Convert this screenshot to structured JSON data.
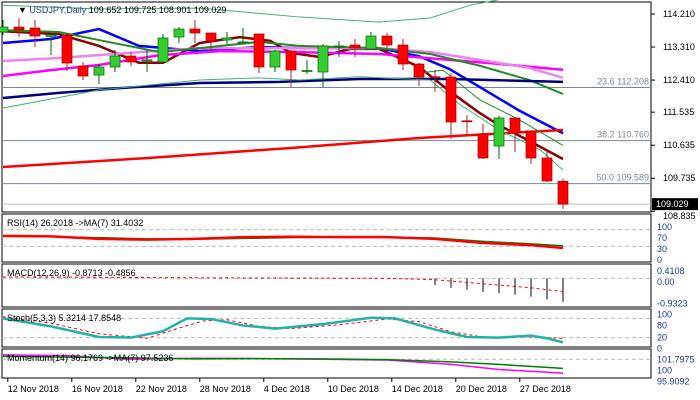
{
  "header": {
    "symbol": "USDJPY,Daily",
    "ohlc": "109.652 109.725 108.901 109.029"
  },
  "colors": {
    "bull": "#33cc33",
    "bear": "#ff0000",
    "rsi": "#ff0000",
    "rsi_ma": "#008000",
    "stoch": "#20b2aa",
    "momentum": "#ff00ff"
  },
  "price_axis": {
    "ticks": [
      "114.210",
      "113.310",
      "112.410",
      "111.535",
      "110.635",
      "109.735",
      "108.835"
    ],
    "current": "109.029"
  },
  "fib_levels": [
    {
      "label": "23.6 112.208",
      "price": 112.208
    },
    {
      "label": "38.2 110.760",
      "price": 110.76
    },
    {
      "label": "50.0 109.589",
      "price": 109.589
    }
  ],
  "candles": [
    [
      113.719,
      114.046,
      113.637,
      113.855
    ],
    [
      113.855,
      114.1,
      113.583,
      113.774
    ],
    [
      113.828,
      114.046,
      113.31,
      113.61
    ],
    [
      113.6,
      113.665,
      113.092,
      113.637
    ],
    [
      113.637,
      113.665,
      112.656,
      112.874
    ],
    [
      112.793,
      112.902,
      112.411,
      112.52
    ],
    [
      112.547,
      112.847,
      112.302,
      112.766
    ],
    [
      112.766,
      113.229,
      112.629,
      113.065
    ],
    [
      113.065,
      113.174,
      112.793,
      112.902
    ],
    [
      112.95,
      113.229,
      112.629,
      112.96
    ],
    [
      112.902,
      113.665,
      112.88,
      113.556
    ],
    [
      113.583,
      113.855,
      113.419,
      113.801
    ],
    [
      113.801,
      114.046,
      113.419,
      113.692
    ],
    [
      113.692,
      113.7,
      113.229,
      113.474
    ],
    [
      113.501,
      113.719,
      113.392,
      113.556
    ],
    [
      113.44,
      113.828,
      113.392,
      113.45
    ],
    [
      113.665,
      113.68,
      112.602,
      112.766
    ],
    [
      112.766,
      113.229,
      112.629,
      113.201
    ],
    [
      113.201,
      113.229,
      112.22,
      112.684
    ],
    [
      112.66,
      112.956,
      112.575,
      112.67
    ],
    [
      112.629,
      113.392,
      112.22,
      113.338
    ],
    [
      113.33,
      113.474,
      113.038,
      113.34
    ],
    [
      113.365,
      113.528,
      113.038,
      113.283
    ],
    [
      113.256,
      113.719,
      113.229,
      113.61
    ],
    [
      113.61,
      113.692,
      113.283,
      113.365
    ],
    [
      113.365,
      113.528,
      112.684,
      112.847
    ],
    [
      112.847,
      112.874,
      112.248,
      112.493
    ],
    [
      112.5,
      112.684,
      112.084,
      112.48
    ],
    [
      112.493,
      112.602,
      110.804,
      111.266
    ],
    [
      111.3,
      111.457,
      110.912,
      111.28
    ],
    [
      110.94,
      111.212,
      110.258,
      110.286
    ],
    [
      110.613,
      111.43,
      110.258,
      111.376
    ],
    [
      111.376,
      111.4,
      110.449,
      110.967
    ],
    [
      111.021,
      111.03,
      110.122,
      110.286
    ],
    [
      110.286,
      110.504,
      109.632,
      109.659
    ],
    [
      109.652,
      109.725,
      108.901,
      109.029
    ]
  ],
  "overlays": [
    {
      "name": "ema-short",
      "color": "#8b0000",
      "width": 2.5,
      "pts": [
        [
          0,
          113.74
        ],
        [
          3.5,
          113.66
        ],
        [
          6,
          113.34
        ],
        [
          8.5,
          112.88
        ],
        [
          10,
          112.88
        ],
        [
          12.3,
          113.42
        ],
        [
          14.8,
          113.58
        ],
        [
          16.7,
          113.48
        ],
        [
          18,
          113.15
        ],
        [
          19.8,
          113.04
        ],
        [
          21.7,
          113.26
        ],
        [
          23.5,
          113.26
        ],
        [
          26,
          112.77
        ],
        [
          27.9,
          112.11
        ],
        [
          29.8,
          111.51
        ],
        [
          31,
          111.18
        ],
        [
          32.9,
          110.75
        ],
        [
          35,
          110.26
        ]
      ]
    },
    {
      "name": "blue-ma",
      "color": "#0000ff",
      "width": 2.5,
      "pts": [
        [
          0,
          113.42
        ],
        [
          3,
          113.53
        ],
        [
          6,
          113.8
        ],
        [
          8.5,
          113.34
        ],
        [
          12.3,
          113.2
        ],
        [
          16,
          113.31
        ],
        [
          18.5,
          113.28
        ],
        [
          23.5,
          113.28
        ],
        [
          26,
          113.06
        ],
        [
          27.9,
          112.71
        ],
        [
          29.8,
          112.22
        ],
        [
          32.3,
          111.57
        ],
        [
          35,
          110.96
        ]
      ]
    },
    {
      "name": "magenta-ma",
      "color": "#ff00ff",
      "width": 2.5,
      "pts": [
        [
          0,
          112.52
        ],
        [
          3,
          112.68
        ],
        [
          6,
          112.82
        ],
        [
          9.8,
          113.09
        ],
        [
          13.6,
          113.2
        ],
        [
          18.5,
          113.17
        ],
        [
          23.5,
          113.12
        ],
        [
          27.9,
          112.96
        ],
        [
          31,
          112.85
        ],
        [
          35,
          112.69
        ]
      ]
    },
    {
      "name": "violet-ma",
      "color": "#ee82ee",
      "width": 2.5,
      "pts": [
        [
          0,
          112.93
        ],
        [
          3.5,
          113.01
        ],
        [
          8.5,
          113.17
        ],
        [
          12.3,
          113.28
        ],
        [
          17.3,
          113.28
        ],
        [
          23.5,
          113.28
        ],
        [
          26.7,
          113.17
        ],
        [
          29.8,
          112.96
        ],
        [
          32.9,
          112.74
        ],
        [
          35,
          112.47
        ]
      ]
    },
    {
      "name": "green-ma",
      "color": "#228b22",
      "width": 2,
      "pts": [
        [
          0,
          113.77
        ],
        [
          3.5,
          113.72
        ],
        [
          6,
          113.5
        ],
        [
          9.8,
          113.17
        ],
        [
          12.3,
          113.28
        ],
        [
          16,
          113.45
        ],
        [
          18.5,
          113.34
        ],
        [
          23.5,
          113.28
        ],
        [
          26.7,
          113.12
        ],
        [
          29.8,
          112.8
        ],
        [
          32.9,
          112.41
        ],
        [
          35,
          112.03
        ]
      ]
    },
    {
      "name": "navy-ma",
      "color": "#000080",
      "width": 2.5,
      "pts": [
        [
          0,
          111.92
        ],
        [
          3.5,
          112.06
        ],
        [
          7.3,
          112.19
        ],
        [
          12.3,
          112.33
        ],
        [
          17.3,
          112.36
        ],
        [
          22.3,
          112.44
        ],
        [
          27.9,
          112.44
        ],
        [
          35,
          112.36
        ]
      ]
    },
    {
      "name": "red-long-ma",
      "color": "#ff0000",
      "width": 2.5,
      "pts": [
        [
          0,
          110.04
        ],
        [
          9.2,
          110.29
        ],
        [
          18,
          110.56
        ],
        [
          26,
          110.83
        ],
        [
          35,
          111.05
        ]
      ]
    },
    {
      "name": "bb-upper",
      "color": "#3cb371",
      "width": 1,
      "pts": [
        [
          0,
          114.45
        ],
        [
          6,
          114.35
        ],
        [
          12.3,
          114.37
        ],
        [
          18.5,
          114.13
        ],
        [
          23.5,
          113.99
        ],
        [
          26.7,
          114.1
        ],
        [
          29.2,
          114.45
        ],
        [
          31,
          114.6
        ]
      ]
    },
    {
      "name": "bb-lower",
      "color": "#3cb371",
      "width": 1,
      "pts": [
        [
          0,
          111.65
        ],
        [
          6,
          112.14
        ],
        [
          12.3,
          112.41
        ],
        [
          16,
          112.47
        ],
        [
          18.5,
          112.41
        ],
        [
          22.3,
          112.5
        ],
        [
          26.7,
          112.41
        ],
        [
          28.6,
          111.73
        ],
        [
          31,
          111.05
        ],
        [
          33.6,
          110.5
        ],
        [
          35,
          109.96
        ]
      ]
    },
    {
      "name": "mid-line",
      "color": "#228b22",
      "width": 1,
      "pts": [
        [
          26,
          112.6
        ],
        [
          27.5,
          112.68
        ],
        [
          29.8,
          111.87
        ],
        [
          32.3,
          111.32
        ],
        [
          35,
          110.63
        ]
      ]
    }
  ],
  "rsi": {
    "label": "RSI(14) 26.2018  ->MA(7) 31.4032",
    "levels": [
      "100",
      "70",
      "30",
      "0"
    ],
    "values": [
      [
        0,
        55
      ],
      [
        3,
        54
      ],
      [
        6,
        48
      ],
      [
        9,
        46
      ],
      [
        12,
        48
      ],
      [
        15,
        52
      ],
      [
        18,
        53
      ],
      [
        21,
        52
      ],
      [
        24,
        52
      ],
      [
        27,
        48
      ],
      [
        30,
        38
      ],
      [
        33,
        33
      ],
      [
        35,
        26.2
      ]
    ],
    "ma": [
      [
        0,
        54
      ],
      [
        3,
        53
      ],
      [
        6,
        51
      ],
      [
        9,
        48
      ],
      [
        12,
        47
      ],
      [
        15,
        49
      ],
      [
        18,
        51
      ],
      [
        21,
        52
      ],
      [
        24,
        52
      ],
      [
        27,
        50
      ],
      [
        30,
        42
      ],
      [
        33,
        36
      ],
      [
        35,
        31.4
      ]
    ]
  },
  "macd": {
    "label": "MACD(12,26,9) -0.8713 -0.4856",
    "levels": [
      "0.4108",
      "0.00",
      "-0.9323"
    ],
    "hist": [
      [
        27,
        -0.25
      ],
      [
        28,
        -0.35
      ],
      [
        29,
        -0.42
      ],
      [
        30,
        -0.5
      ],
      [
        31,
        -0.55
      ],
      [
        32,
        -0.6
      ],
      [
        33,
        -0.68
      ],
      [
        34,
        -0.78
      ],
      [
        35,
        -0.87
      ]
    ],
    "signal": [
      [
        0,
        0.05
      ],
      [
        6,
        0.04
      ],
      [
        12,
        0.02
      ],
      [
        18,
        0.01
      ],
      [
        24,
        0.0
      ],
      [
        27,
        -0.05
      ],
      [
        30,
        -0.2
      ],
      [
        33,
        -0.35
      ],
      [
        35,
        -0.49
      ]
    ]
  },
  "stoch": {
    "label": "Stoch(5,3,3) 5.3214 17.8548",
    "levels": [
      "100",
      "80",
      "20",
      "0"
    ],
    "main": [
      [
        0,
        80
      ],
      [
        3,
        55
      ],
      [
        6,
        22
      ],
      [
        8,
        20
      ],
      [
        10,
        40
      ],
      [
        11.5,
        80
      ],
      [
        13,
        78
      ],
      [
        15,
        58
      ],
      [
        17,
        48
      ],
      [
        20,
        62
      ],
      [
        23,
        82
      ],
      [
        24.5,
        80
      ],
      [
        27,
        45
      ],
      [
        29,
        22
      ],
      [
        31,
        20
      ],
      [
        33,
        26
      ],
      [
        34,
        18
      ],
      [
        35,
        5.3
      ]
    ],
    "signal": [
      [
        0,
        85
      ],
      [
        3,
        65
      ],
      [
        6,
        32
      ],
      [
        9,
        18
      ],
      [
        11,
        50
      ],
      [
        12.5,
        72
      ],
      [
        14,
        76
      ],
      [
        16,
        55
      ],
      [
        18,
        48
      ],
      [
        21,
        60
      ],
      [
        24,
        78
      ],
      [
        26,
        70
      ],
      [
        28,
        38
      ],
      [
        30,
        22
      ],
      [
        33,
        22
      ],
      [
        35,
        17.9
      ]
    ]
  },
  "momentum": {
    "label": "Momentum(14) 96.1769  ->MA(7) 97.5236",
    "levels": [
      "101.7975",
      "100",
      "95.9092"
    ],
    "values": [
      [
        0,
        101.2
      ],
      [
        4,
        101.0
      ],
      [
        8,
        100.0
      ],
      [
        12,
        100.3
      ],
      [
        16,
        100.2
      ],
      [
        20,
        100.0
      ],
      [
        24,
        99.8
      ],
      [
        28,
        98.6
      ],
      [
        31,
        97.2
      ],
      [
        35,
        96.2
      ]
    ],
    "ma": [
      [
        0,
        100.8
      ],
      [
        4,
        100.6
      ],
      [
        8,
        100.4
      ],
      [
        12,
        100.1
      ],
      [
        16,
        100.2
      ],
      [
        20,
        100.1
      ],
      [
        24,
        99.9
      ],
      [
        28,
        99.3
      ],
      [
        31,
        98.6
      ],
      [
        35,
        97.5
      ]
    ]
  },
  "x_axis": {
    "labels": [
      "12 Nov 2018",
      "16 Nov 2018",
      "22 Nov 2018",
      "28 Nov 2018",
      "4 Dec 2018",
      "10 Dec 2018",
      "14 Dec 2018",
      "20 Dec 2018",
      "27 Dec 2018"
    ],
    "label_candle_index": [
      0.3,
      4.3,
      8.3,
      12.3,
      16.3,
      20.3,
      24.3,
      28.3,
      32.3
    ]
  }
}
